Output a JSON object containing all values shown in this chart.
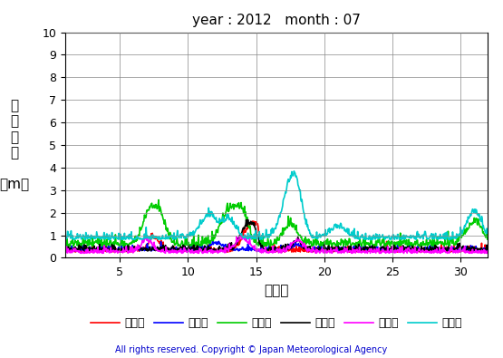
{
  "title": "year : 2012   month : 07",
  "xlabel": "（日）",
  "ylabel": "有\n義\n波\n高\n\n（m）",
  "xlim": [
    1,
    32
  ],
  "ylim": [
    0,
    10
  ],
  "yticks": [
    0,
    1,
    2,
    3,
    4,
    5,
    6,
    7,
    8,
    9,
    10
  ],
  "xticks": [
    5,
    10,
    15,
    20,
    25,
    30
  ],
  "copyright": "All rights reserved. Copyright © Japan Meteorological Agency",
  "series_names": [
    "上ノ国",
    "江ノ島",
    "石廉崎",
    "経ヶ岖",
    "生月島",
    "屋久島"
  ],
  "series_colors": [
    "#ff0000",
    "#0000ff",
    "#00cc00",
    "#000000",
    "#ff00ff",
    "#00cccc"
  ],
  "series_lw": [
    1.2,
    1.2,
    1.2,
    1.2,
    1.2,
    1.2
  ],
  "background_color": "#ffffff",
  "grid_color": "#888888"
}
